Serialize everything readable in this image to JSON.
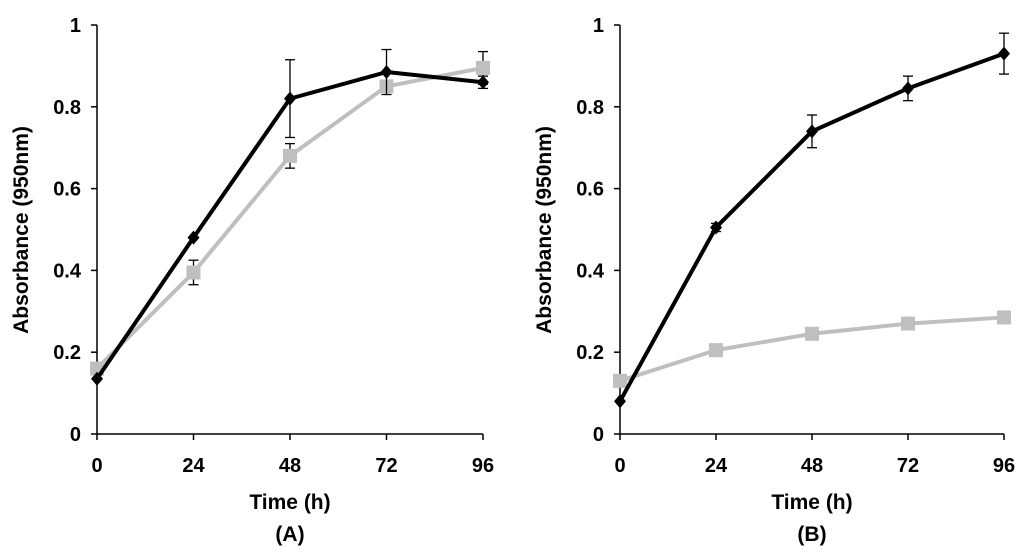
{
  "figure": {
    "description_note": ""
  },
  "chart_data": [
    {
      "type": "line",
      "panel_label": "(A)",
      "xlabel": "Time (h)",
      "ylabel": "Absorbance (950nm)",
      "x": [
        0,
        24,
        48,
        72,
        96
      ],
      "x_ticks": [
        "0",
        "24",
        "48",
        "72",
        "96"
      ],
      "y_ticks": [
        "0",
        "0.2",
        "0.4",
        "0.6",
        "0.8",
        "1"
      ],
      "xlim": [
        0,
        96
      ],
      "ylim": [
        0,
        1
      ],
      "grid": false,
      "legend": "none",
      "series": [
        {
          "name": "black-diamond",
          "color": "#000000",
          "marker": "diamond",
          "values": [
            0.135,
            0.48,
            0.82,
            0.885,
            0.86
          ],
          "errors": [
            0,
            0,
            0.095,
            0.055,
            0.015
          ]
        },
        {
          "name": "gray-square",
          "color": "#bfbfbf",
          "marker": "square",
          "values": [
            0.16,
            0.395,
            0.68,
            0.85,
            0.895
          ],
          "errors": [
            0,
            0.03,
            0.03,
            0.01,
            0.04
          ]
        }
      ]
    },
    {
      "type": "line",
      "panel_label": "(B)",
      "xlabel": "Time (h)",
      "ylabel": "Absorbance (950nm)",
      "x": [
        0,
        24,
        48,
        72,
        96
      ],
      "x_ticks": [
        "0",
        "24",
        "48",
        "72",
        "96"
      ],
      "y_ticks": [
        "0",
        "0.2",
        "0.4",
        "0.6",
        "0.8",
        "1"
      ],
      "xlim": [
        0,
        96
      ],
      "ylim": [
        0,
        1
      ],
      "grid": false,
      "legend": "none",
      "series": [
        {
          "name": "black-diamond",
          "color": "#000000",
          "marker": "diamond",
          "values": [
            0.08,
            0.505,
            0.74,
            0.845,
            0.93
          ],
          "errors": [
            0,
            0.01,
            0.04,
            0.03,
            0.05
          ]
        },
        {
          "name": "gray-square",
          "color": "#bfbfbf",
          "marker": "square",
          "values": [
            0.13,
            0.205,
            0.245,
            0.27,
            0.285
          ],
          "errors": [
            0,
            0,
            0,
            0,
            0
          ]
        }
      ]
    }
  ]
}
